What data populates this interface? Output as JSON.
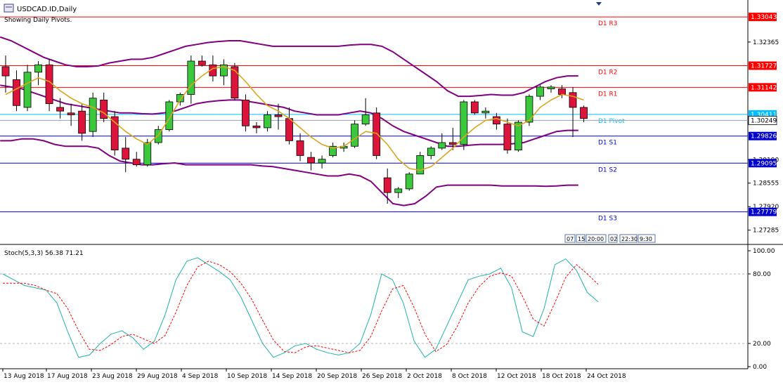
{
  "header": {
    "symbol_title": "USDCAD.ID,Daily",
    "subtitle": "Showing Daily Pivots."
  },
  "colors": {
    "bull": "#3cc83c",
    "bear": "#dc143c",
    "wick": "#000000",
    "ma": "#daa520",
    "bands": "#800080",
    "resistance": "#ff0000",
    "support": "#0000cd",
    "pivot": "#00bfff",
    "stoch_main": "#20b2aa",
    "stoch_signal": "#ff0000",
    "price_tag": "#ff0000",
    "price_tag_support": "#0000cd",
    "price_tag_pivot": "#00bfff"
  },
  "chart_data": [
    {
      "type": "candlestick",
      "symbol": "USDCAD.ID",
      "timeframe": "Daily",
      "ylim": [
        1.269,
        1.335
      ],
      "price_ticks": [
        "1.32365",
        "1.29190",
        "1.28555",
        "1.27920",
        "1.27285"
      ],
      "x_labels": [
        "13 Aug 2018",
        "17 Aug 2018",
        "23 Aug 2018",
        "29 Aug 2018",
        "4 Sep 2018",
        "10 Sep 2018",
        "14 Sep 2018",
        "20 Sep 2018",
        "26 Sep 2018",
        "2 Oct 2018",
        "8 Oct 2018",
        "12 Oct 2018",
        "18 Oct 2018",
        "24 Oct 2018"
      ],
      "pivots": [
        {
          "label": "D1 R3",
          "value": 1.33043,
          "tag": "1.33043",
          "kind": "resistance"
        },
        {
          "label": "D1 R2",
          "value": 1.31727,
          "tag": "1.31727",
          "kind": "resistance"
        },
        {
          "label": "D1 R1",
          "value": 1.31142,
          "tag": "1.31142",
          "kind": "resistance"
        },
        {
          "label": "D1 Pivot",
          "value": 1.30411,
          "tag": "1.30411",
          "kind": "pivot"
        },
        {
          "label": "D1 S1",
          "value": 1.29826,
          "tag": "1.29826",
          "kind": "support"
        },
        {
          "label": "D1 S2",
          "value": 1.29095,
          "tag": "1.29095",
          "kind": "support"
        },
        {
          "label": "D1 S3",
          "value": 1.27779,
          "tag": "1.27779",
          "kind": "support"
        }
      ],
      "current_price": {
        "value": 1.30249,
        "tag": "1.30249"
      },
      "candles": [
        {
          "o": 1.317,
          "h": 1.32,
          "l": 1.31,
          "c": 1.3145
        },
        {
          "o": 1.3135,
          "h": 1.316,
          "l": 1.305,
          "c": 1.3065
        },
        {
          "o": 1.306,
          "h": 1.3175,
          "l": 1.305,
          "c": 1.3155
        },
        {
          "o": 1.3155,
          "h": 1.3185,
          "l": 1.312,
          "c": 1.3175
        },
        {
          "o": 1.3175,
          "h": 1.319,
          "l": 1.305,
          "c": 1.307
        },
        {
          "o": 1.306,
          "h": 1.3085,
          "l": 1.303,
          "c": 1.305
        },
        {
          "o": 1.3045,
          "h": 1.307,
          "l": 1.301,
          "c": 1.304
        },
        {
          "o": 1.305,
          "h": 1.307,
          "l": 1.297,
          "c": 1.299
        },
        {
          "o": 1.2995,
          "h": 1.31,
          "l": 1.298,
          "c": 1.3085
        },
        {
          "o": 1.308,
          "h": 1.31,
          "l": 1.302,
          "c": 1.303
        },
        {
          "o": 1.3035,
          "h": 1.305,
          "l": 1.293,
          "c": 1.2945
        },
        {
          "o": 1.295,
          "h": 1.298,
          "l": 1.2885,
          "c": 1.292
        },
        {
          "o": 1.292,
          "h": 1.294,
          "l": 1.29,
          "c": 1.2905
        },
        {
          "o": 1.2905,
          "h": 1.2975,
          "l": 1.29,
          "c": 1.2965
        },
        {
          "o": 1.2965,
          "h": 1.301,
          "l": 1.296,
          "c": 1.3
        },
        {
          "o": 1.3,
          "h": 1.308,
          "l": 1.2995,
          "c": 1.3075
        },
        {
          "o": 1.3075,
          "h": 1.31,
          "l": 1.3065,
          "c": 1.3095
        },
        {
          "o": 1.3095,
          "h": 1.32,
          "l": 1.307,
          "c": 1.3185
        },
        {
          "o": 1.3185,
          "h": 1.32,
          "l": 1.317,
          "c": 1.3175
        },
        {
          "o": 1.3175,
          "h": 1.32,
          "l": 1.313,
          "c": 1.3145
        },
        {
          "o": 1.3145,
          "h": 1.319,
          "l": 1.312,
          "c": 1.3175
        },
        {
          "o": 1.317,
          "h": 1.318,
          "l": 1.308,
          "c": 1.3085
        },
        {
          "o": 1.308,
          "h": 1.3095,
          "l": 1.2995,
          "c": 1.301
        },
        {
          "o": 1.301,
          "h": 1.302,
          "l": 1.299,
          "c": 1.3005
        },
        {
          "o": 1.3005,
          "h": 1.305,
          "l": 1.2995,
          "c": 1.304
        },
        {
          "o": 1.304,
          "h": 1.307,
          "l": 1.3,
          "c": 1.3035
        },
        {
          "o": 1.303,
          "h": 1.306,
          "l": 1.296,
          "c": 1.297
        },
        {
          "o": 1.297,
          "h": 1.299,
          "l": 1.2915,
          "c": 1.293
        },
        {
          "o": 1.2925,
          "h": 1.294,
          "l": 1.289,
          "c": 1.291
        },
        {
          "o": 1.291,
          "h": 1.293,
          "l": 1.2895,
          "c": 1.292
        },
        {
          "o": 1.293,
          "h": 1.2965,
          "l": 1.2925,
          "c": 1.2955
        },
        {
          "o": 1.295,
          "h": 1.2965,
          "l": 1.294,
          "c": 1.2955
        },
        {
          "o": 1.2955,
          "h": 1.3025,
          "l": 1.295,
          "c": 1.3015
        },
        {
          "o": 1.3015,
          "h": 1.3085,
          "l": 1.301,
          "c": 1.304
        },
        {
          "o": 1.3045,
          "h": 1.306,
          "l": 1.292,
          "c": 1.293
        },
        {
          "o": 1.287,
          "h": 1.2895,
          "l": 1.28,
          "c": 1.283
        },
        {
          "o": 1.283,
          "h": 1.2845,
          "l": 1.2815,
          "c": 1.284
        },
        {
          "o": 1.284,
          "h": 1.2885,
          "l": 1.2835,
          "c": 1.288
        },
        {
          "o": 1.288,
          "h": 1.294,
          "l": 1.288,
          "c": 1.293
        },
        {
          "o": 1.293,
          "h": 1.2955,
          "l": 1.292,
          "c": 1.295
        },
        {
          "o": 1.295,
          "h": 1.299,
          "l": 1.2945,
          "c": 1.2965
        },
        {
          "o": 1.2965,
          "h": 1.3005,
          "l": 1.2945,
          "c": 1.296
        },
        {
          "o": 1.296,
          "h": 1.308,
          "l": 1.2945,
          "c": 1.3075
        },
        {
          "o": 1.3075,
          "h": 1.308,
          "l": 1.304,
          "c": 1.3045
        },
        {
          "o": 1.3045,
          "h": 1.306,
          "l": 1.303,
          "c": 1.305
        },
        {
          "o": 1.3035,
          "h": 1.3045,
          "l": 1.3,
          "c": 1.3015
        },
        {
          "o": 1.3015,
          "h": 1.303,
          "l": 1.2935,
          "c": 1.2945
        },
        {
          "o": 1.2945,
          "h": 1.3025,
          "l": 1.294,
          "c": 1.302
        },
        {
          "o": 1.302,
          "h": 1.3095,
          "l": 1.301,
          "c": 1.309
        },
        {
          "o": 1.309,
          "h": 1.312,
          "l": 1.308,
          "c": 1.3115
        },
        {
          "o": 1.311,
          "h": 1.312,
          "l": 1.31,
          "c": 1.3115
        },
        {
          "o": 1.311,
          "h": 1.312,
          "l": 1.3085,
          "c": 1.3095
        },
        {
          "o": 1.31,
          "h": 1.3115,
          "l": 1.298,
          "c": 1.306
        },
        {
          "o": 1.306,
          "h": 1.3065,
          "l": 1.302,
          "c": 1.303
        }
      ],
      "ma": [
        1.3095,
        1.311,
        1.3125,
        1.314,
        1.313,
        1.3105,
        1.3085,
        1.307,
        1.306,
        1.3045,
        1.302,
        1.2995,
        1.2975,
        1.296,
        1.2985,
        1.303,
        1.308,
        1.312,
        1.3145,
        1.3165,
        1.317,
        1.316,
        1.313,
        1.3095,
        1.3065,
        1.305,
        1.303,
        1.3005,
        1.298,
        1.296,
        1.295,
        1.2955,
        1.2975,
        1.2995,
        1.299,
        1.296,
        1.292,
        1.2895,
        1.289,
        1.29,
        1.2925,
        1.295,
        1.298,
        1.3005,
        1.3025,
        1.303,
        1.302,
        1.301,
        1.3025,
        1.306,
        1.308,
        1.3095,
        1.309,
        1.308
      ],
      "upper_band": [
        1.325,
        1.324,
        1.3225,
        1.321,
        1.3195,
        1.3185,
        1.3175,
        1.317,
        1.317,
        1.3172,
        1.318,
        1.3185,
        1.319,
        1.319,
        1.3195,
        1.3205,
        1.3215,
        1.3225,
        1.323,
        1.3235,
        1.3238,
        1.324,
        1.324,
        1.3235,
        1.323,
        1.3225,
        1.3225,
        1.3225,
        1.3225,
        1.3225,
        1.3225,
        1.3225,
        1.3228,
        1.323,
        1.323,
        1.3225,
        1.321,
        1.319,
        1.317,
        1.315,
        1.313,
        1.3105,
        1.309,
        1.309,
        1.3092,
        1.3095,
        1.3093,
        1.3093,
        1.31,
        1.3115,
        1.313,
        1.314,
        1.3145,
        1.3145
      ],
      "middle_band": [
        1.312,
        1.3115,
        1.311,
        1.31,
        1.309,
        1.308,
        1.307,
        1.3065,
        1.306,
        1.3055,
        1.305,
        1.3045,
        1.3045,
        1.3043,
        1.3042,
        1.3045,
        1.305,
        1.306,
        1.307,
        1.3075,
        1.3078,
        1.308,
        1.308,
        1.3075,
        1.307,
        1.3065,
        1.306,
        1.305,
        1.3045,
        1.304,
        1.304,
        1.304,
        1.3045,
        1.305,
        1.3045,
        1.303,
        1.301,
        1.2995,
        1.2985,
        1.2975,
        1.2965,
        1.2955,
        1.2955,
        1.2958,
        1.296,
        1.296,
        1.296,
        1.2962,
        1.2965,
        1.2975,
        1.2985,
        1.2995,
        1.2998,
        1.2998
      ],
      "lower_band": [
        1.297,
        1.297,
        1.2975,
        1.2975,
        1.297,
        1.296,
        1.2955,
        1.2955,
        1.2955,
        1.295,
        1.293,
        1.2915,
        1.291,
        1.2905,
        1.2905,
        1.2908,
        1.291,
        1.2905,
        1.2905,
        1.2905,
        1.2905,
        1.2905,
        1.2905,
        1.2905,
        1.2902,
        1.29,
        1.2895,
        1.289,
        1.2885,
        1.288,
        1.2875,
        1.2875,
        1.288,
        1.2875,
        1.286,
        1.283,
        1.28,
        1.2795,
        1.28,
        1.282,
        1.2845,
        1.285,
        1.285,
        1.285,
        1.285,
        1.285,
        1.2848,
        1.2848,
        1.2848,
        1.2848,
        1.2847,
        1.2848,
        1.285,
        1.285
      ]
    },
    {
      "type": "line",
      "indicator": "Stochastic",
      "legend": "Stoch(5,3,3) 56.38 71.21",
      "ylim": [
        0,
        100
      ],
      "y_ticks": [
        "100.00",
        "80.00",
        "20.00",
        "0.00"
      ],
      "levels": [
        80,
        20
      ],
      "series": [
        {
          "name": "main",
          "values": [
            80,
            75,
            70,
            68,
            66,
            55,
            30,
            8,
            10,
            20,
            28,
            31,
            25,
            15,
            22,
            45,
            75,
            91,
            94,
            88,
            82,
            75,
            60,
            40,
            20,
            8,
            12,
            18,
            20,
            15,
            12,
            10,
            12,
            20,
            45,
            80,
            75,
            55,
            22,
            8,
            15,
            35,
            55,
            75,
            78,
            80,
            85,
            68,
            30,
            26,
            50,
            88,
            93,
            83,
            64,
            56
          ]
        },
        {
          "name": "signal",
          "values": [
            72,
            72,
            72,
            70,
            66,
            63,
            50,
            31,
            15,
            14,
            19,
            26,
            28,
            24,
            20,
            27,
            47,
            70,
            86,
            91,
            88,
            82,
            72,
            58,
            40,
            23,
            13,
            12,
            17,
            18,
            16,
            14,
            12,
            14,
            26,
            48,
            67,
            70,
            51,
            28,
            13,
            19,
            35,
            55,
            69,
            78,
            81,
            78,
            61,
            41,
            35,
            55,
            77,
            88,
            80,
            71
          ]
        }
      ]
    }
  ],
  "time_readout": [
    "07",
    "15",
    "20:00",
    "02",
    "22:30",
    "9:30"
  ]
}
